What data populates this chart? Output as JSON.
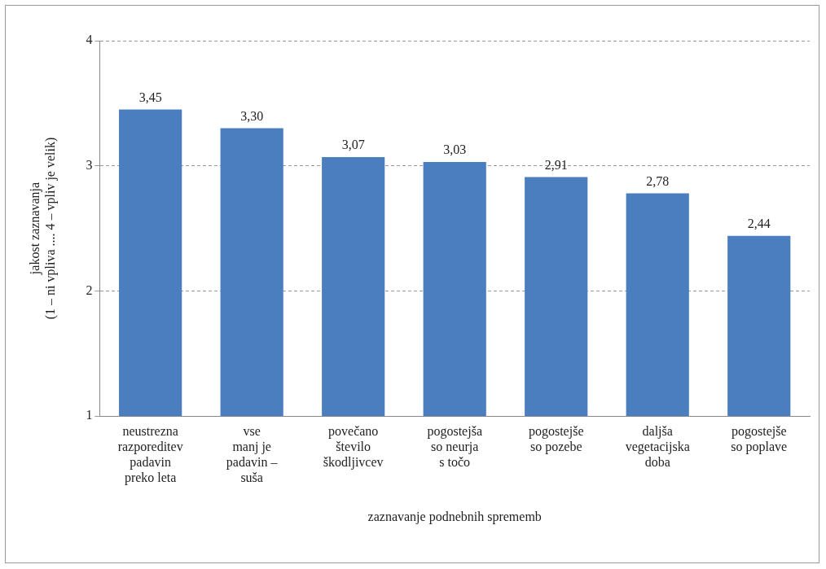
{
  "chart_data": {
    "type": "bar",
    "categories": [
      "neustrezna\nrazporeditev\npadavin\npreko leta",
      "vse\nmanj je\npadavin –\nsuša",
      "povečano\nštevilo\nškodljivcev",
      "pogostejša\nso neurja\ns točo",
      "pogostejše\nso pozebe",
      "daljša\nvegetacijska\ndoba",
      "pogostejše\nso poplave"
    ],
    "values": [
      3.45,
      3.3,
      3.07,
      3.03,
      2.91,
      2.78,
      2.44
    ],
    "value_labels": [
      "3,45",
      "3,30",
      "3,07",
      "3,03",
      "2,91",
      "2,78",
      "2,44"
    ],
    "color": "#4a7ebf",
    "xlabel": "zaznavanje podnebnih sprememb",
    "ylabel": "jakost zaznavanja\n(1 – ni vpliva .... 4 – vpliv je velik)",
    "ylim": [
      1,
      4
    ],
    "yticks": [
      1,
      2,
      3,
      4
    ],
    "grid": "y",
    "legend": false
  }
}
